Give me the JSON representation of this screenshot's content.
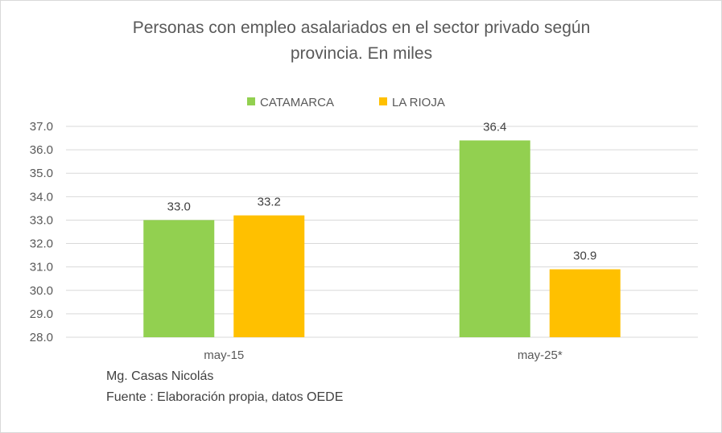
{
  "chart_data": {
    "type": "bar",
    "title_lines": [
      "Personas con empleo asalariados en el sector privado según",
      "provincia. En miles"
    ],
    "categories": [
      "may-15",
      "may-25*"
    ],
    "series": [
      {
        "name": "CATAMARCA",
        "color": "#92d050",
        "values": [
          33.0,
          36.4
        ],
        "labels": [
          "33.0",
          "36.4"
        ]
      },
      {
        "name": "LA RIOJA",
        "color": "#ffc000",
        "values": [
          33.2,
          30.9
        ],
        "labels": [
          "33.2",
          "30.9"
        ]
      }
    ],
    "ylim": [
      28.0,
      37.0
    ],
    "yticks": [
      "28.0",
      "29.0",
      "30.0",
      "31.0",
      "32.0",
      "33.0",
      "34.0",
      "35.0",
      "36.0",
      "37.0"
    ],
    "grid": true,
    "legend_position": "top"
  },
  "notes": {
    "author": "Mg. Casas Nicolás",
    "source": "Fuente : Elaboración propia, datos  OEDE"
  }
}
